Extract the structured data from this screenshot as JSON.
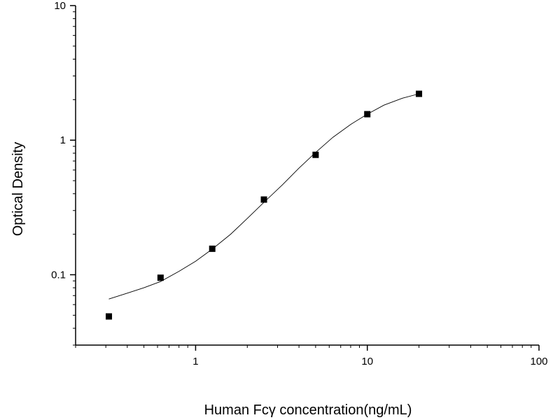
{
  "chart_data": {
    "type": "scatter",
    "xlabel": "Human Fcγ   concentration(ng/mL)",
    "ylabel": "Optical Density",
    "x_scale": "log",
    "y_scale": "log",
    "xlim": [
      0.2,
      100
    ],
    "ylim": [
      0.03,
      10
    ],
    "x_ticks": [
      {
        "value": 1,
        "label": "1"
      },
      {
        "value": 10,
        "label": "10"
      },
      {
        "value": 100,
        "label": "100"
      }
    ],
    "y_ticks": [
      {
        "value": 0.1,
        "label": "0.1"
      },
      {
        "value": 1,
        "label": "1"
      },
      {
        "value": 10,
        "label": "10"
      }
    ],
    "grid": false,
    "legend": "none",
    "series": [
      {
        "marker": "square",
        "color": "#000000",
        "x": [
          0.3125,
          0.625,
          1.25,
          2.5,
          5,
          10,
          20
        ],
        "y": [
          0.049,
          0.095,
          0.156,
          0.362,
          0.778,
          1.56,
          2.21
        ]
      }
    ],
    "fit_curve": {
      "color": "#000000",
      "x": [
        0.3125,
        0.4,
        0.5,
        0.625,
        0.8,
        1.0,
        1.25,
        1.6,
        2.0,
        2.5,
        3.2,
        4.0,
        5.0,
        6.3,
        8.0,
        10,
        12.5,
        16,
        20
      ],
      "y": [
        0.066,
        0.073,
        0.08,
        0.089,
        0.106,
        0.126,
        0.155,
        0.2,
        0.262,
        0.345,
        0.465,
        0.62,
        0.81,
        1.05,
        1.31,
        1.56,
        1.82,
        2.05,
        2.21
      ]
    }
  }
}
